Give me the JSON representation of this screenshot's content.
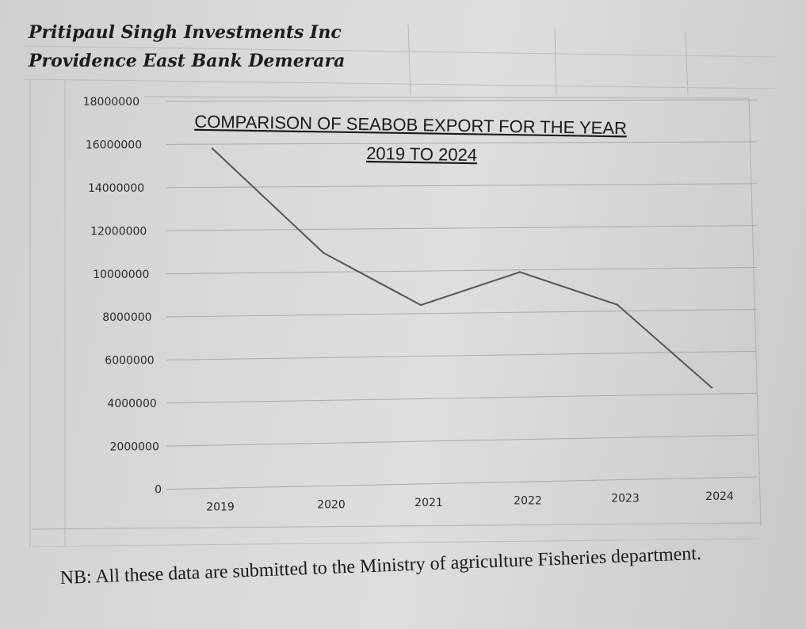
{
  "header": {
    "company": "Pritipaul Singh Investments Inc",
    "address": "Providence East Bank Demerara"
  },
  "chart_data": {
    "type": "line",
    "title": "COMPARISON OF SEABOB EXPORT FOR THE YEAR",
    "subtitle": "2019 TO 2024",
    "x": [
      "2019",
      "2020",
      "2021",
      "2022",
      "2023",
      "2024"
    ],
    "series": [
      {
        "values": [
          15800000,
          10900000,
          8400000,
          9900000,
          8300000,
          4300000
        ]
      }
    ],
    "yticks": [
      "0",
      "2000000",
      "4000000",
      "6000000",
      "8000000",
      "10000000",
      "12000000",
      "14000000",
      "16000000",
      "18000000"
    ],
    "ylim": [
      0,
      18000000
    ],
    "grid": true,
    "legend": false,
    "line_color": "#555555"
  },
  "footer": {
    "note": "NB: All these data are submitted to the Ministry of agriculture Fisheries department."
  }
}
